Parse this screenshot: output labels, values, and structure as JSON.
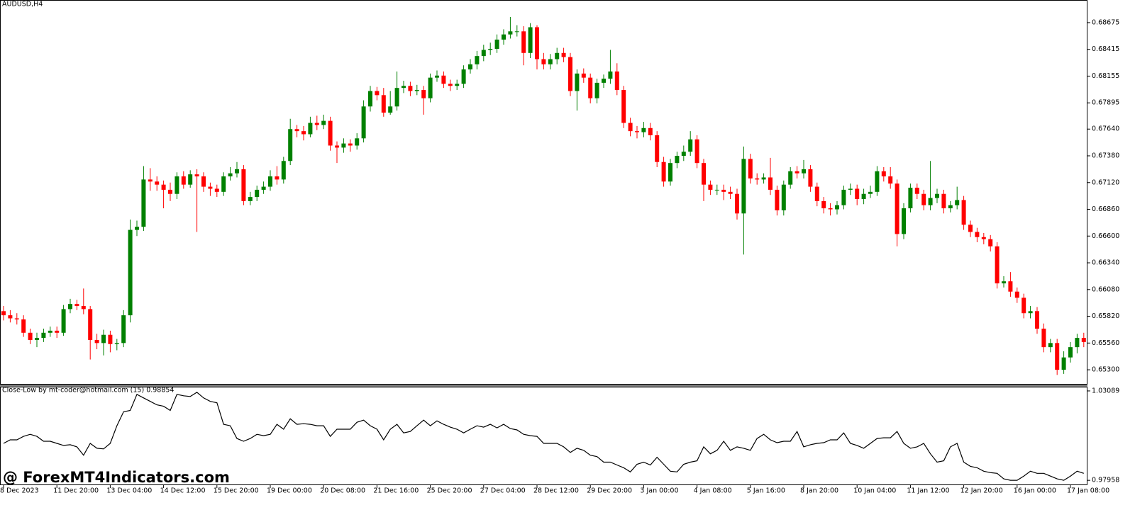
{
  "chart_data": [
    {
      "type": "candlestick",
      "title": "AUDUSD,H4",
      "up_color": "#008000",
      "down_color": "#ff0000",
      "categories": [
        "8 Dec 2023",
        null,
        null,
        null,
        null,
        null,
        null,
        null,
        "11 Dec 20:00",
        null,
        null,
        null,
        null,
        null,
        null,
        null,
        "13 Dec 04:00",
        null,
        null,
        null,
        null,
        null,
        null,
        null,
        "14 Dec 12:00",
        null,
        null,
        null,
        null,
        null,
        null,
        null,
        "15 Dec 20:00",
        null,
        null,
        null,
        null,
        null,
        null,
        null,
        "19 Dec 00:00",
        null,
        null,
        null,
        null,
        null,
        null,
        null,
        "20 Dec 08:00",
        null,
        null,
        null,
        null,
        null,
        null,
        null,
        "21 Dec 16:00",
        null,
        null,
        null,
        null,
        null,
        null,
        null,
        "25 Dec 20:00",
        null,
        null,
        null,
        null,
        null,
        null,
        null,
        "27 Dec 04:00",
        null,
        null,
        null,
        null,
        null,
        null,
        null,
        "28 Dec 12:00",
        null,
        null,
        null,
        null,
        null,
        null,
        null,
        "29 Dec 20:00",
        null,
        null,
        null,
        null,
        null,
        null,
        null,
        "3 Jan 00:00",
        null,
        null,
        null,
        null,
        null,
        null,
        null,
        "4 Jan 08:00",
        null,
        null,
        null,
        null,
        null,
        null,
        null,
        "5 Jan 16:00",
        null,
        null,
        null,
        null,
        null,
        null,
        null,
        "8 Jan 20:00",
        null,
        null,
        null,
        null,
        null,
        null,
        null,
        "10 Jan 04:00",
        null,
        null,
        null,
        null,
        null,
        null,
        null,
        "11 Jan 12:00",
        null,
        null,
        null,
        null,
        null,
        null,
        null,
        "12 Jan 20:00",
        null,
        null,
        null,
        null,
        null,
        null,
        null,
        "16 Jan 00:00",
        null,
        null,
        null,
        null,
        null,
        null,
        null,
        "17 Jan 08:00",
        null,
        null
      ],
      "open": [
        0.6587,
        0.6583,
        0.658,
        0.6579,
        0.6566,
        0.6559,
        0.6561,
        0.6566,
        0.6568,
        0.6566,
        0.6589,
        0.6594,
        0.6592,
        0.6589,
        0.6559,
        0.6556,
        0.6564,
        0.6555,
        0.6556,
        0.6583,
        0.6666,
        0.6669,
        0.6715,
        0.6713,
        0.671,
        0.6705,
        0.6701,
        0.6718,
        0.671,
        0.672,
        0.6718,
        0.6708,
        0.6706,
        0.6703,
        0.6718,
        0.6721,
        0.6725,
        0.6694,
        0.6698,
        0.6705,
        0.6708,
        0.6718,
        0.6715,
        0.6733,
        0.6764,
        0.6762,
        0.6759,
        0.677,
        0.6768,
        0.6772,
        0.6748,
        0.6746,
        0.675,
        0.6748,
        0.6755,
        0.6786,
        0.6801,
        0.6797,
        0.678,
        0.6786,
        0.6804,
        0.6806,
        0.6801,
        0.6802,
        0.6794,
        0.6814,
        0.6816,
        0.6808,
        0.6806,
        0.6808,
        0.6822,
        0.6827,
        0.6835,
        0.6841,
        0.6842,
        0.6851,
        0.6856,
        0.6859,
        0.6859,
        0.6838,
        0.6863,
        0.6832,
        0.6827,
        0.6832,
        0.6838,
        0.6834,
        0.6801,
        0.6818,
        0.6814,
        0.6794,
        0.6809,
        0.6813,
        0.682,
        0.6802,
        0.677,
        0.6762,
        0.6761,
        0.6765,
        0.6758,
        0.6732,
        0.6713,
        0.6731,
        0.6738,
        0.6742,
        0.6754,
        0.6731,
        0.671,
        0.6705,
        0.6705,
        0.6703,
        0.6701,
        0.6682,
        0.6735,
        0.6716,
        0.6715,
        0.6717,
        0.6705,
        0.6685,
        0.671,
        0.6723,
        0.6721,
        0.6725,
        0.6708,
        0.6694,
        0.6687,
        0.6686,
        0.669,
        0.6705,
        0.6706,
        0.6696,
        0.6701,
        0.6703,
        0.6723,
        0.6718,
        0.6711,
        0.6662,
        0.6687,
        0.6707,
        0.6701,
        0.669,
        0.6697,
        0.6701,
        0.6687,
        0.669,
        0.6695,
        0.6671,
        0.6664,
        0.6659,
        0.6657,
        0.665,
        0.6614,
        0.6616,
        0.6606,
        0.66,
        0.6585,
        0.6587,
        0.657,
        0.6552,
        0.6556,
        0.653,
        0.6542,
        0.6552,
        0.6561
      ],
      "high": [
        0.6592,
        0.6588,
        0.6585,
        0.6583,
        0.657,
        0.6566,
        0.657,
        0.6572,
        0.6572,
        0.6593,
        0.6599,
        0.6598,
        0.6609,
        0.6592,
        0.6565,
        0.6569,
        0.6568,
        0.656,
        0.6588,
        0.6676,
        0.6675,
        0.6728,
        0.6726,
        0.6718,
        0.6714,
        0.6712,
        0.6722,
        0.6723,
        0.6724,
        0.6725,
        0.6722,
        0.6712,
        0.671,
        0.6722,
        0.6727,
        0.6732,
        0.6729,
        0.6703,
        0.6709,
        0.6713,
        0.6724,
        0.6728,
        0.6737,
        0.6774,
        0.6768,
        0.6767,
        0.6776,
        0.6777,
        0.6778,
        0.6776,
        0.6752,
        0.6755,
        0.6754,
        0.676,
        0.6792,
        0.6806,
        0.6805,
        0.6804,
        0.6801,
        0.682,
        0.6811,
        0.681,
        0.6807,
        0.6806,
        0.6818,
        0.6821,
        0.682,
        0.6812,
        0.6812,
        0.6826,
        0.6832,
        0.684,
        0.6846,
        0.6848,
        0.6856,
        0.6861,
        0.6873,
        0.6865,
        0.6864,
        0.6867,
        0.6865,
        0.6838,
        0.6837,
        0.6843,
        0.6843,
        0.6838,
        0.6822,
        0.6823,
        0.6818,
        0.6813,
        0.6817,
        0.6841,
        0.6828,
        0.6806,
        0.6775,
        0.6767,
        0.6771,
        0.677,
        0.6762,
        0.6737,
        0.6735,
        0.6742,
        0.6748,
        0.6762,
        0.6758,
        0.6735,
        0.6714,
        0.671,
        0.671,
        0.6708,
        0.6706,
        0.6747,
        0.674,
        0.6721,
        0.6721,
        0.6736,
        0.6709,
        0.6714,
        0.6727,
        0.6728,
        0.6734,
        0.6729,
        0.6712,
        0.6698,
        0.6692,
        0.6694,
        0.6709,
        0.6711,
        0.671,
        0.6706,
        0.6709,
        0.6728,
        0.6727,
        0.6727,
        0.6715,
        0.6692,
        0.6711,
        0.6711,
        0.6705,
        0.6733,
        0.6706,
        0.6705,
        0.6694,
        0.6708,
        0.6699,
        0.6675,
        0.6668,
        0.6663,
        0.6661,
        0.6654,
        0.6621,
        0.6625,
        0.661,
        0.6604,
        0.6592,
        0.6591,
        0.6575,
        0.656,
        0.656,
        0.6548,
        0.6557,
        0.6565,
        0.6566
      ],
      "low": [
        0.6578,
        0.6576,
        0.6574,
        0.6562,
        0.6555,
        0.6552,
        0.6557,
        0.6562,
        0.6561,
        0.6563,
        0.6585,
        0.6588,
        0.6584,
        0.654,
        0.655,
        0.6544,
        0.6547,
        0.6549,
        0.6552,
        0.6576,
        0.666,
        0.6665,
        0.6704,
        0.6704,
        0.6687,
        0.6694,
        0.6696,
        0.6706,
        0.6707,
        0.6664,
        0.6703,
        0.6699,
        0.6698,
        0.6699,
        0.6714,
        0.6717,
        0.669,
        0.669,
        0.6694,
        0.6701,
        0.6704,
        0.671,
        0.6711,
        0.6729,
        0.6756,
        0.6753,
        0.6756,
        0.6763,
        0.6764,
        0.6743,
        0.6731,
        0.6741,
        0.6742,
        0.6744,
        0.6751,
        0.6781,
        0.6792,
        0.6776,
        0.6778,
        0.6782,
        0.6799,
        0.6796,
        0.6797,
        0.6778,
        0.679,
        0.681,
        0.6804,
        0.6801,
        0.6802,
        0.6804,
        0.6818,
        0.6822,
        0.683,
        0.6836,
        0.6838,
        0.6846,
        0.6852,
        0.6854,
        0.6826,
        0.6833,
        0.6822,
        0.6822,
        0.6822,
        0.6827,
        0.6829,
        0.6796,
        0.6782,
        0.6809,
        0.6789,
        0.6789,
        0.6804,
        0.6808,
        0.6797,
        0.6765,
        0.6757,
        0.6755,
        0.6756,
        0.6753,
        0.6727,
        0.6708,
        0.6709,
        0.6726,
        0.6733,
        0.6738,
        0.6726,
        0.6694,
        0.67,
        0.67,
        0.6695,
        0.6696,
        0.6676,
        0.6642,
        0.6711,
        0.671,
        0.6711,
        0.67,
        0.668,
        0.668,
        0.6706,
        0.6716,
        0.6716,
        0.6703,
        0.6689,
        0.6682,
        0.668,
        0.6681,
        0.6686,
        0.67,
        0.669,
        0.6691,
        0.6697,
        0.6699,
        0.6713,
        0.6706,
        0.665,
        0.6657,
        0.6683,
        0.6696,
        0.6685,
        0.6685,
        0.6692,
        0.6682,
        0.6683,
        0.6686,
        0.6666,
        0.6659,
        0.6654,
        0.6652,
        0.6645,
        0.6609,
        0.661,
        0.6601,
        0.6595,
        0.658,
        0.658,
        0.6565,
        0.6547,
        0.6547,
        0.6525,
        0.6526,
        0.6537,
        0.6546,
        0.6552
      ],
      "close": [
        0.6583,
        0.658,
        0.6579,
        0.6566,
        0.6559,
        0.6561,
        0.6566,
        0.6568,
        0.6566,
        0.6589,
        0.6594,
        0.6592,
        0.6589,
        0.6559,
        0.6556,
        0.6564,
        0.6555,
        0.6556,
        0.6583,
        0.6666,
        0.6669,
        0.6715,
        0.6713,
        0.671,
        0.6705,
        0.6701,
        0.6718,
        0.671,
        0.672,
        0.6718,
        0.6708,
        0.6706,
        0.6703,
        0.6718,
        0.6721,
        0.6725,
        0.6694,
        0.6698,
        0.6705,
        0.6708,
        0.6718,
        0.6715,
        0.6733,
        0.6764,
        0.6762,
        0.6759,
        0.677,
        0.6768,
        0.6772,
        0.6748,
        0.6746,
        0.675,
        0.6748,
        0.6755,
        0.6786,
        0.6801,
        0.6797,
        0.678,
        0.6786,
        0.6804,
        0.6806,
        0.6801,
        0.6802,
        0.6794,
        0.6814,
        0.6816,
        0.6808,
        0.6806,
        0.6808,
        0.6822,
        0.6827,
        0.6835,
        0.6841,
        0.6842,
        0.6851,
        0.6856,
        0.6859,
        0.6859,
        0.6838,
        0.6863,
        0.6832,
        0.6827,
        0.6832,
        0.6838,
        0.6834,
        0.6801,
        0.6818,
        0.6814,
        0.6794,
        0.6809,
        0.6813,
        0.682,
        0.6802,
        0.677,
        0.6762,
        0.6761,
        0.6765,
        0.6758,
        0.6732,
        0.6713,
        0.6731,
        0.6738,
        0.6742,
        0.6754,
        0.6731,
        0.671,
        0.6705,
        0.6705,
        0.6703,
        0.6701,
        0.6682,
        0.6735,
        0.6716,
        0.6715,
        0.6717,
        0.6705,
        0.6685,
        0.671,
        0.6723,
        0.6721,
        0.6725,
        0.6708,
        0.6694,
        0.6687,
        0.6686,
        0.669,
        0.6705,
        0.6706,
        0.6696,
        0.6701,
        0.6703,
        0.6723,
        0.6718,
        0.6711,
        0.6662,
        0.6687,
        0.6707,
        0.6701,
        0.669,
        0.6697,
        0.6701,
        0.6687,
        0.669,
        0.6695,
        0.6671,
        0.6664,
        0.6659,
        0.6657,
        0.665,
        0.6614,
        0.6616,
        0.6606,
        0.66,
        0.6585,
        0.6587,
        0.657,
        0.6552,
        0.6556,
        0.653,
        0.6542,
        0.6552,
        0.6561,
        0.6557
      ],
      "ylim": [
        0.65156,
        0.68888
      ],
      "yticks": [
        0.68675,
        0.68415,
        0.68155,
        0.67895,
        {
          "value": 0.6764,
          "label": "0.67640"
        },
        {
          "value": 0.6738,
          "label": "0.67380"
        },
        {
          "value": 0.6712,
          "label": "0.67120"
        },
        {
          "value": 0.6686,
          "label": "0.66860"
        },
        {
          "value": 0.666,
          "label": "0.66600"
        },
        {
          "value": 0.6634,
          "label": "0.66340"
        },
        {
          "value": 0.6608,
          "label": "0.66080"
        },
        {
          "value": 0.6582,
          "label": "0.65820"
        },
        {
          "value": 0.6556,
          "label": "0.65560"
        },
        {
          "value": 0.653,
          "label": "0.65300"
        }
      ]
    },
    {
      "type": "line",
      "title": "Close-Low by mt-coder@hotmail.com (15) 0.98854",
      "color": "#000000",
      "values": [
        1.0008,
        1.0028,
        1.0028,
        1.0048,
        1.006,
        1.0048,
        1.002,
        1.002,
        1.0008,
        0.9996,
        1.0,
        0.9988,
        0.994,
        1.0008,
        0.998,
        0.9976,
        1.0008,
        1.0109,
        1.0189,
        1.0197,
        1.0289,
        1.0269,
        1.0249,
        1.0229,
        1.0221,
        1.0197,
        1.0289,
        1.0281,
        1.0277,
        1.0301,
        1.0269,
        1.0249,
        1.0241,
        1.0117,
        1.0109,
        1.0036,
        1.002,
        1.0036,
        1.006,
        1.0052,
        1.006,
        1.0117,
        1.0089,
        1.0149,
        1.0117,
        1.0121,
        1.0117,
        1.0109,
        1.0109,
        1.0048,
        1.0089,
        1.0089,
        1.0089,
        1.0129,
        1.0141,
        1.0109,
        1.0089,
        1.0028,
        1.0089,
        1.0117,
        1.0068,
        1.0076,
        1.0109,
        1.0141,
        1.0109,
        1.0137,
        1.0117,
        1.0101,
        1.0089,
        1.0068,
        1.0089,
        1.0109,
        1.0101,
        1.0117,
        1.0097,
        1.0117,
        1.0093,
        1.0085,
        1.006,
        1.0052,
        1.0048,
        1.0008,
        1.0008,
        1.0008,
        0.9988,
        0.9956,
        0.998,
        0.9968,
        0.994,
        0.9932,
        0.99,
        0.99,
        0.9884,
        0.9868,
        0.9844,
        0.9888,
        0.99,
        0.9884,
        0.9928,
        0.9888,
        0.9848,
        0.9844,
        0.9888,
        0.99,
        0.9908,
        0.9988,
        0.9948,
        0.9968,
        1.002,
        0.9968,
        0.9988,
        0.998,
        0.9968,
        1.0036,
        1.006,
        1.0028,
        1.0012,
        1.002,
        1.002,
        1.0076,
        0.9988,
        1.0,
        1.0008,
        1.0012,
        1.0028,
        1.0028,
        1.0068,
        1.0008,
        0.9996,
        0.998,
        1.0008,
        1.0036,
        1.004,
        1.004,
        1.0076,
        1.0008,
        0.998,
        0.9988,
        1.0008,
        0.9948,
        0.99,
        0.9908,
        0.9988,
        1.0008,
        0.99,
        0.9876,
        0.9868,
        0.9848,
        0.984,
        0.9836,
        0.9804,
        0.9796,
        0.9796,
        0.982,
        0.9848,
        0.9836,
        0.9836,
        0.982,
        0.9804,
        0.9796,
        0.982,
        0.9848,
        0.9836
      ],
      "ylim": [
        0.9768,
        1.0329
      ],
      "yticks": [
        1.03089,
        0.97958
      ]
    }
  ],
  "watermark": "@ ForexMT4Indicators.com"
}
